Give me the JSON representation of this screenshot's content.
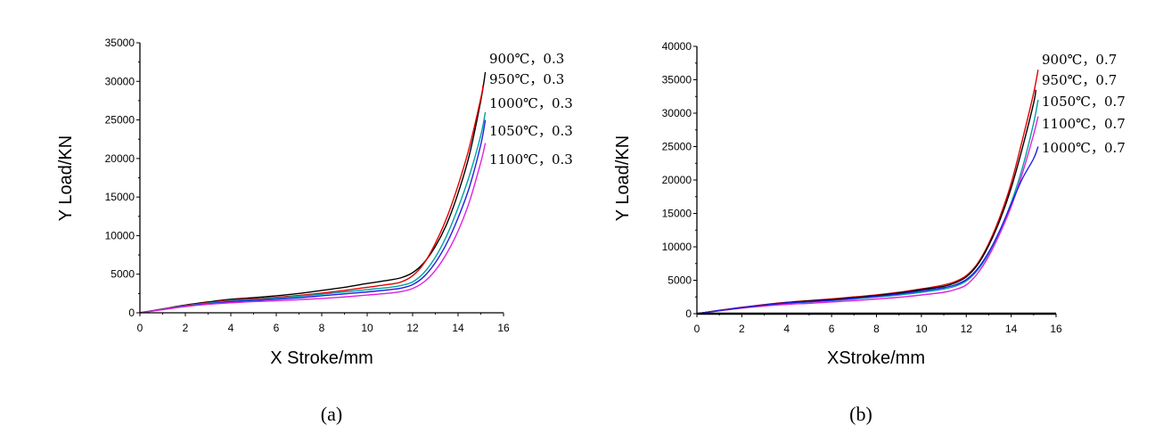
{
  "chart_data": [
    {
      "type": "line",
      "panel_label": "(a)",
      "xlabel": "X Stroke/mm",
      "ylabel": "Y Load/KN",
      "xlim": [
        0,
        16
      ],
      "ylim": [
        0,
        35000
      ],
      "xticks": [
        0,
        2,
        4,
        6,
        8,
        10,
        12,
        14,
        16
      ],
      "yticks": [
        0,
        5000,
        10000,
        15000,
        20000,
        25000,
        30000,
        35000
      ],
      "grid": false,
      "legend": "labels at line ends, top-right",
      "series": [
        {
          "name": "900℃，0.3",
          "color": "#000000",
          "x": [
            0,
            1,
            2,
            3,
            4,
            5,
            6,
            7,
            8,
            9,
            10,
            11,
            11.5,
            12,
            12.5,
            13,
            13.5,
            14,
            14.5,
            15,
            15.2
          ],
          "y": [
            0,
            500,
            1000,
            1400,
            1750,
            1950,
            2200,
            2500,
            2900,
            3300,
            3800,
            4250,
            4550,
            5200,
            6500,
            8600,
            11500,
            15500,
            20500,
            27500,
            31200
          ]
        },
        {
          "name": "950℃，0.3",
          "color": "#e00000",
          "x": [
            0,
            1,
            2,
            3,
            4,
            5,
            6,
            7,
            8,
            9,
            10,
            11,
            11.5,
            12,
            12.5,
            13,
            13.5,
            14,
            14.5,
            15,
            15.1
          ],
          "y": [
            0,
            480,
            950,
            1300,
            1650,
            1800,
            2000,
            2250,
            2550,
            2900,
            3300,
            3700,
            4000,
            4800,
            6400,
            9000,
            12300,
            16500,
            21500,
            27800,
            29500
          ]
        },
        {
          "name": "1000℃，0.3",
          "color": "#00a0a0",
          "x": [
            0,
            1,
            2,
            3,
            4,
            5,
            6,
            7,
            8,
            9,
            10,
            11,
            11.5,
            12,
            12.5,
            13,
            13.5,
            14,
            14.5,
            15,
            15.2
          ],
          "y": [
            0,
            450,
            900,
            1250,
            1550,
            1700,
            1900,
            2150,
            2400,
            2700,
            3000,
            3300,
            3550,
            4000,
            5200,
            7200,
            10000,
            13600,
            17800,
            23000,
            26000
          ]
        },
        {
          "name": "1050℃，0.3",
          "color": "#2020e0",
          "x": [
            0,
            1,
            2,
            3,
            4,
            5,
            6,
            7,
            8,
            9,
            10,
            11,
            11.5,
            12,
            12.5,
            13,
            13.5,
            14,
            14.5,
            15,
            15.2
          ],
          "y": [
            0,
            420,
            850,
            1150,
            1450,
            1600,
            1750,
            1950,
            2200,
            2450,
            2700,
            3000,
            3200,
            3650,
            4700,
            6500,
            9000,
            12300,
            16300,
            21800,
            25000
          ]
        },
        {
          "name": "1100℃，0.3",
          "color": "#e020e0",
          "x": [
            0,
            1,
            2,
            3,
            4,
            5,
            6,
            7,
            8,
            9,
            10,
            11,
            11.5,
            12,
            12.5,
            13,
            13.5,
            14,
            14.5,
            15,
            15.2
          ],
          "y": [
            0,
            400,
            800,
            1100,
            1300,
            1450,
            1550,
            1700,
            1850,
            2050,
            2300,
            2550,
            2750,
            3150,
            4000,
            5500,
            7700,
            10600,
            14400,
            19500,
            22000
          ]
        }
      ]
    },
    {
      "type": "line",
      "panel_label": "(b)",
      "xlabel": "XStroke/mm",
      "ylabel": "Y Load/KN",
      "xlim": [
        0,
        16
      ],
      "ylim": [
        0,
        40000
      ],
      "xticks": [
        0,
        2,
        4,
        6,
        8,
        10,
        12,
        14,
        16
      ],
      "yticks": [
        0,
        5000,
        10000,
        15000,
        20000,
        25000,
        30000,
        35000,
        40000
      ],
      "grid": false,
      "legend": "labels at line ends, top-right",
      "series": [
        {
          "name": "900℃，0.7",
          "color": "#e00000",
          "x": [
            0,
            1,
            2,
            3,
            4,
            5,
            6,
            7,
            8,
            9,
            10,
            11,
            11.5,
            12,
            12.5,
            13,
            13.5,
            14,
            14.5,
            15,
            15.2
          ],
          "y": [
            0,
            500,
            950,
            1350,
            1700,
            1950,
            2200,
            2500,
            2800,
            3200,
            3700,
            4300,
            4800,
            5700,
            7500,
            10500,
            14500,
            19500,
            26000,
            33000,
            36500
          ]
        },
        {
          "name": "950℃，0.7",
          "color": "#000000",
          "x": [
            0,
            1,
            2,
            3,
            4,
            5,
            6,
            7,
            8,
            9,
            10,
            11,
            11.5,
            12,
            12.5,
            13,
            13.5,
            14,
            14.5,
            15,
            15.1
          ],
          "y": [
            0,
            480,
            920,
            1300,
            1650,
            1900,
            2100,
            2400,
            2700,
            3100,
            3600,
            4100,
            4600,
            5500,
            7300,
            10200,
            14000,
            18800,
            24800,
            31500,
            33500
          ]
        },
        {
          "name": "1050℃，0.7",
          "color": "#00a0a0",
          "x": [
            0,
            1,
            2,
            3,
            4,
            5,
            6,
            7,
            8,
            9,
            10,
            11,
            11.5,
            12,
            12.5,
            13,
            13.5,
            14,
            14.5,
            15,
            15.2
          ],
          "y": [
            0,
            460,
            880,
            1250,
            1550,
            1750,
            1950,
            2200,
            2500,
            2800,
            3200,
            3700,
            4100,
            4900,
            6500,
            9000,
            12400,
            16600,
            21800,
            28500,
            32000
          ]
        },
        {
          "name": "1100℃，0.7",
          "color": "#e020e0",
          "x": [
            0,
            1,
            2,
            3,
            4,
            5,
            6,
            7,
            8,
            9,
            10,
            11,
            11.5,
            12,
            12.5,
            13,
            13.5,
            14,
            14.5,
            15,
            15.2
          ],
          "y": [
            0,
            430,
            830,
            1150,
            1400,
            1550,
            1750,
            1950,
            2200,
            2450,
            2800,
            3200,
            3600,
            4300,
            6000,
            8600,
            12000,
            16000,
            21000,
            26800,
            29500
          ]
        },
        {
          "name": "1000℃，0.7",
          "color": "#2020e0",
          "x": [
            0,
            1,
            2,
            3,
            4,
            5,
            6,
            7,
            8,
            9,
            10,
            11,
            11.5,
            12,
            12.5,
            13,
            13.5,
            14,
            14.5,
            15,
            15.2
          ],
          "y": [
            0,
            470,
            900,
            1280,
            1600,
            1800,
            2000,
            2300,
            2600,
            2950,
            3400,
            3900,
            4300,
            5100,
            6700,
            9200,
            12500,
            16400,
            20200,
            23200,
            25000
          ]
        }
      ]
    }
  ]
}
